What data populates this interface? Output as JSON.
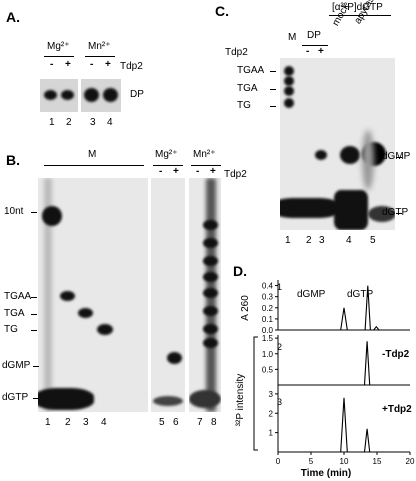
{
  "panel_a": {
    "letter": "A.",
    "mg_label": "Mg²⁺",
    "mn_label": "Mn²⁺",
    "minus": "-",
    "plus": "+",
    "tdp2_label": "Tdp2",
    "dp_label": "DP",
    "lanes": [
      "1",
      "2",
      "3",
      "4"
    ]
  },
  "panel_b": {
    "letter": "B.",
    "m_label": "M",
    "mg_label": "Mg²⁺",
    "mn_label": "Mn²⁺",
    "minus": "-",
    "plus": "+",
    "tdp2_label": "Tdp2",
    "markers": [
      "10nt",
      "TGAA",
      "TGA",
      "TG",
      "dGMP",
      "dGTP"
    ],
    "lanes": [
      "1",
      "2",
      "3",
      "4",
      "5",
      "6",
      "7",
      "8"
    ]
  },
  "panel_c": {
    "letter": "C.",
    "top_label": "[α³²P]dGTP",
    "tdp2_label": "Tdp2",
    "m_label": "M",
    "dp_label": "DP",
    "minus": "-",
    "plus": "+",
    "mock_label": "mock",
    "apyrase_label": "apyrase",
    "left_markers": [
      "TGAA",
      "TGA",
      "TG"
    ],
    "right_markers": [
      "dGMP",
      "dGTP"
    ],
    "lanes": [
      "1",
      "2",
      "3",
      "4",
      "5"
    ]
  },
  "panel_d": {
    "letter": "D.",
    "y_label_top": "A 260",
    "y_label_bottom": "³²P intensity",
    "x_label": "Time (min)",
    "peak_dgmp": "dGMP",
    "peak_dgtp": "dGTP",
    "trace_labels": [
      "1",
      "2",
      "3"
    ],
    "condition_minus": "-Tdp2",
    "condition_plus": "+Tdp2",
    "chart_data": {
      "type": "line",
      "xlabel": "Time (min)",
      "xlim": [
        0,
        20
      ],
      "x_ticks": [
        "0",
        "5",
        "10",
        "15",
        "20"
      ],
      "traces": [
        {
          "ylabel": "A 260",
          "ylim": [
            0,
            0.45
          ],
          "y_ticks": [
            "0.4",
            "0.3",
            "0.2",
            "0.1",
            "0.0"
          ],
          "x": [
            0,
            9.5,
            10.0,
            10.5,
            11,
            13.2,
            13.6,
            14.0,
            14.5,
            14.9,
            15.3,
            20
          ],
          "y": [
            0,
            0,
            0.2,
            0,
            0,
            0,
            0.4,
            0,
            0,
            0.03,
            0,
            0
          ]
        },
        {
          "ylim": [
            0,
            1.6
          ],
          "y_ticks": [
            "1.5",
            "1.0",
            "0.5"
          ],
          "x": [
            0,
            13.1,
            13.5,
            13.9,
            20
          ],
          "y": [
            0,
            0,
            1.4,
            0,
            0
          ]
        },
        {
          "ylim": [
            0,
            3.2
          ],
          "y_ticks": [
            "3",
            "2",
            "1"
          ],
          "x": [
            0,
            9.5,
            10.0,
            10.5,
            13.1,
            13.5,
            13.9,
            20
          ],
          "y": [
            0,
            0,
            2.8,
            0,
            0,
            1.2,
            0,
            0
          ]
        }
      ]
    }
  }
}
